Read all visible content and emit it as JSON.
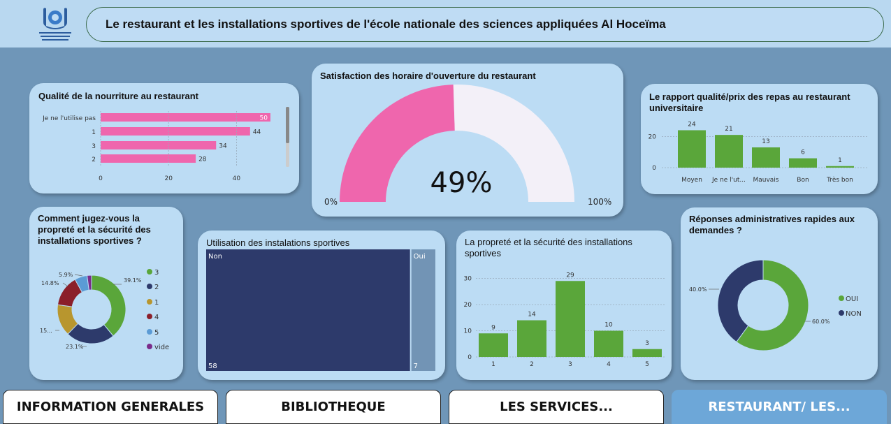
{
  "header": {
    "title": "Le restaurant et les installations sportives de l'école nationale des sciences appliquées Al Hoceïma"
  },
  "colors": {
    "pink": "#ef66ad",
    "green": "#5aa63a",
    "navy": "#2d3a6b",
    "darkred": "#8b1f2a",
    "gold": "#b8962e",
    "lightblue": "#5b9bd5",
    "purple": "#7a2b8a",
    "gray_blue": "#7294b5"
  },
  "cards": {
    "food_quality": {
      "title": "Qualité de la nourriture au restaurant",
      "chart_data": {
        "type": "bar",
        "orientation": "horizontal",
        "categories": [
          "Je ne l'utilise pas",
          "1",
          "3",
          "2"
        ],
        "values": [
          50,
          44,
          34,
          28
        ],
        "xticks": [
          "0",
          "20",
          "40"
        ],
        "xlim": [
          0,
          50
        ]
      }
    },
    "opening_hours": {
      "title": "Satisfaction des horaire d'ouverture du restaurant",
      "chart_data": {
        "type": "gauge",
        "value_label": "49%",
        "value": 49,
        "min_label": "0%",
        "max_label": "100%"
      }
    },
    "price_quality": {
      "title": "Le rapport qualité/prix des repas au restaurant universitaire",
      "chart_data": {
        "type": "bar",
        "categories": [
          "Moyen",
          "Je ne l'ut...",
          "Mauvais",
          "Bon",
          "Très bon"
        ],
        "values": [
          24,
          21,
          13,
          6,
          1
        ],
        "yticks": [
          "0",
          "20"
        ],
        "ylim": [
          0,
          26
        ]
      }
    },
    "cleanliness_donut": {
      "title": "Comment jugez-vous la propreté et la sécurité des installations sportives ?",
      "chart_data": {
        "type": "pie",
        "categories": [
          "3",
          "2",
          "1",
          "4",
          "5",
          "vide"
        ],
        "values": [
          39.1,
          23.1,
          15.0,
          14.8,
          5.9,
          2.1
        ],
        "slice_labels": [
          "39.1%",
          "23.1%",
          "15...",
          "14.8%",
          "5.9%",
          ""
        ],
        "legend_position": "right"
      }
    },
    "sports_usage": {
      "title": "Utilisation des instalations sportives",
      "chart_data": {
        "type": "treemap",
        "categories": [
          "Non",
          "Oui"
        ],
        "values": [
          58,
          7
        ],
        "value_labels": [
          "58",
          "7"
        ]
      }
    },
    "cleanliness_bars": {
      "title": "La propreté et la sécurité des installations sportives",
      "chart_data": {
        "type": "bar",
        "categories": [
          "1",
          "2",
          "3",
          "4",
          "5"
        ],
        "values": [
          9,
          14,
          29,
          10,
          3
        ],
        "yticks": [
          "0",
          "10",
          "20",
          "30"
        ],
        "ylim": [
          0,
          32
        ]
      }
    },
    "admin_responses": {
      "title": "Réponses administratives rapides aux demandes ?",
      "chart_data": {
        "type": "pie",
        "categories": [
          "OUI",
          "NON"
        ],
        "values": [
          60.0,
          40.0
        ],
        "slice_labels": [
          "60.0%",
          "40.0%"
        ],
        "legend_position": "right"
      }
    }
  },
  "nav": {
    "items": [
      {
        "label": "INFORMATION GENERALES",
        "active": false
      },
      {
        "label": "BIBLIOTHEQUE",
        "active": false
      },
      {
        "label": "LES SERVICES...",
        "active": false
      },
      {
        "label": "RESTAURANT/ LES...",
        "active": true
      }
    ]
  }
}
